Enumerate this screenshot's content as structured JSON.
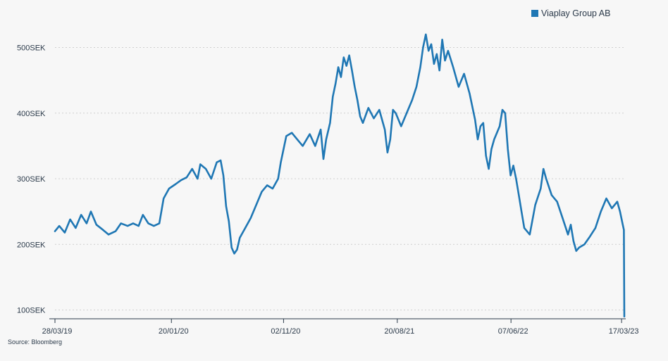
{
  "legend": {
    "label": "Viaplay Group AB",
    "color": "#1f77b4"
  },
  "source": "Source: Bloomberg",
  "chart_data": {
    "type": "line",
    "title": "",
    "xlabel": "",
    "ylabel": "",
    "grid": true,
    "legend_position": "top-right",
    "ylim": [
      90,
      520
    ],
    "xlim": [
      "2019-03-28",
      "2023-03-24"
    ],
    "y_ticks": [
      {
        "value": 100,
        "label": "100SEK"
      },
      {
        "value": 200,
        "label": "200SEK"
      },
      {
        "value": 300,
        "label": "300SEK"
      },
      {
        "value": 400,
        "label": "400SEK"
      },
      {
        "value": 500,
        "label": "500SEK"
      }
    ],
    "x_ticks": [
      {
        "date": "2019-03-28",
        "label": "28/03/19"
      },
      {
        "date": "2020-01-20",
        "label": "20/01/20"
      },
      {
        "date": "2020-11-02",
        "label": "02/11/20"
      },
      {
        "date": "2021-08-20",
        "label": "20/08/21"
      },
      {
        "date": "2022-06-07",
        "label": "07/06/22"
      },
      {
        "date": "2023-03-17",
        "label": "17/03/23"
      }
    ],
    "series": [
      {
        "name": "Viaplay Group AB",
        "color": "#1f77b4",
        "points": [
          [
            "2019-03-28",
            220
          ],
          [
            "2019-04-08",
            228
          ],
          [
            "2019-04-22",
            218
          ],
          [
            "2019-05-06",
            238
          ],
          [
            "2019-05-20",
            225
          ],
          [
            "2019-06-03",
            245
          ],
          [
            "2019-06-17",
            232
          ],
          [
            "2019-06-28",
            250
          ],
          [
            "2019-07-12",
            230
          ],
          [
            "2019-07-29",
            222
          ],
          [
            "2019-08-12",
            215
          ],
          [
            "2019-08-30",
            220
          ],
          [
            "2019-09-13",
            232
          ],
          [
            "2019-09-30",
            228
          ],
          [
            "2019-10-14",
            232
          ],
          [
            "2019-10-28",
            228
          ],
          [
            "2019-11-08",
            245
          ],
          [
            "2019-11-22",
            232
          ],
          [
            "2019-12-06",
            228
          ],
          [
            "2019-12-20",
            232
          ],
          [
            "2019-12-31",
            270
          ],
          [
            "2020-01-14",
            285
          ],
          [
            "2020-01-31",
            292
          ],
          [
            "2020-02-14",
            298
          ],
          [
            "2020-02-28",
            302
          ],
          [
            "2020-03-13",
            315
          ],
          [
            "2020-03-27",
            300
          ],
          [
            "2020-04-03",
            322
          ],
          [
            "2020-04-17",
            315
          ],
          [
            "2020-05-01",
            300
          ],
          [
            "2020-05-15",
            325
          ],
          [
            "2020-05-25",
            328
          ],
          [
            "2020-06-01",
            305
          ],
          [
            "2020-06-08",
            258
          ],
          [
            "2020-06-15",
            235
          ],
          [
            "2020-06-22",
            195
          ],
          [
            "2020-06-29",
            186
          ],
          [
            "2020-07-06",
            192
          ],
          [
            "2020-07-13",
            210
          ],
          [
            "2020-07-27",
            225
          ],
          [
            "2020-08-10",
            240
          ],
          [
            "2020-08-24",
            260
          ],
          [
            "2020-09-07",
            280
          ],
          [
            "2020-09-21",
            290
          ],
          [
            "2020-10-05",
            285
          ],
          [
            "2020-10-19",
            300
          ],
          [
            "2020-10-26",
            325
          ],
          [
            "2020-11-09",
            365
          ],
          [
            "2020-11-23",
            370
          ],
          [
            "2020-12-07",
            360
          ],
          [
            "2020-12-21",
            350
          ],
          [
            "2021-01-08",
            368
          ],
          [
            "2021-01-22",
            350
          ],
          [
            "2021-02-05",
            375
          ],
          [
            "2021-02-12",
            330
          ],
          [
            "2021-02-19",
            360
          ],
          [
            "2021-03-01",
            385
          ],
          [
            "2021-03-08",
            425
          ],
          [
            "2021-03-15",
            445
          ],
          [
            "2021-03-22",
            470
          ],
          [
            "2021-03-29",
            455
          ],
          [
            "2021-04-05",
            485
          ],
          [
            "2021-04-12",
            472
          ],
          [
            "2021-04-19",
            488
          ],
          [
            "2021-04-26",
            465
          ],
          [
            "2021-05-03",
            440
          ],
          [
            "2021-05-10",
            420
          ],
          [
            "2021-05-17",
            395
          ],
          [
            "2021-05-24",
            385
          ],
          [
            "2021-06-07",
            408
          ],
          [
            "2021-06-21",
            392
          ],
          [
            "2021-07-05",
            405
          ],
          [
            "2021-07-19",
            375
          ],
          [
            "2021-07-26",
            340
          ],
          [
            "2021-08-02",
            360
          ],
          [
            "2021-08-09",
            405
          ],
          [
            "2021-08-16",
            400
          ],
          [
            "2021-08-30",
            380
          ],
          [
            "2021-09-13",
            400
          ],
          [
            "2021-09-27",
            420
          ],
          [
            "2021-10-08",
            440
          ],
          [
            "2021-10-18",
            470
          ],
          [
            "2021-10-25",
            500
          ],
          [
            "2021-11-01",
            520
          ],
          [
            "2021-11-08",
            495
          ],
          [
            "2021-11-15",
            505
          ],
          [
            "2021-11-22",
            475
          ],
          [
            "2021-11-29",
            490
          ],
          [
            "2021-12-06",
            465
          ],
          [
            "2021-12-13",
            512
          ],
          [
            "2021-12-20",
            480
          ],
          [
            "2021-12-28",
            495
          ],
          [
            "2022-01-10",
            470
          ],
          [
            "2022-01-24",
            440
          ],
          [
            "2022-02-07",
            460
          ],
          [
            "2022-02-21",
            430
          ],
          [
            "2022-03-07",
            390
          ],
          [
            "2022-03-14",
            360
          ],
          [
            "2022-03-21",
            380
          ],
          [
            "2022-03-28",
            385
          ],
          [
            "2022-04-04",
            335
          ],
          [
            "2022-04-11",
            315
          ],
          [
            "2022-04-18",
            345
          ],
          [
            "2022-04-25",
            360
          ],
          [
            "2022-05-02",
            370
          ],
          [
            "2022-05-09",
            380
          ],
          [
            "2022-05-16",
            405
          ],
          [
            "2022-05-23",
            400
          ],
          [
            "2022-05-30",
            345
          ],
          [
            "2022-06-06",
            305
          ],
          [
            "2022-06-13",
            320
          ],
          [
            "2022-06-20",
            300
          ],
          [
            "2022-06-27",
            275
          ],
          [
            "2022-07-04",
            250
          ],
          [
            "2022-07-11",
            225
          ],
          [
            "2022-07-25",
            215
          ],
          [
            "2022-08-08",
            260
          ],
          [
            "2022-08-22",
            285
          ],
          [
            "2022-08-29",
            315
          ],
          [
            "2022-09-05",
            300
          ],
          [
            "2022-09-19",
            275
          ],
          [
            "2022-10-03",
            265
          ],
          [
            "2022-10-17",
            240
          ],
          [
            "2022-10-31",
            215
          ],
          [
            "2022-11-07",
            230
          ],
          [
            "2022-11-14",
            205
          ],
          [
            "2022-11-21",
            190
          ],
          [
            "2022-11-28",
            195
          ],
          [
            "2022-12-12",
            200
          ],
          [
            "2022-12-26",
            212
          ],
          [
            "2023-01-09",
            225
          ],
          [
            "2023-01-23",
            250
          ],
          [
            "2023-02-06",
            270
          ],
          [
            "2023-02-20",
            255
          ],
          [
            "2023-03-06",
            265
          ],
          [
            "2023-03-13",
            250
          ],
          [
            "2023-03-20",
            230
          ],
          [
            "2023-03-23",
            222
          ],
          [
            "2023-03-24",
            90
          ]
        ]
      }
    ]
  }
}
